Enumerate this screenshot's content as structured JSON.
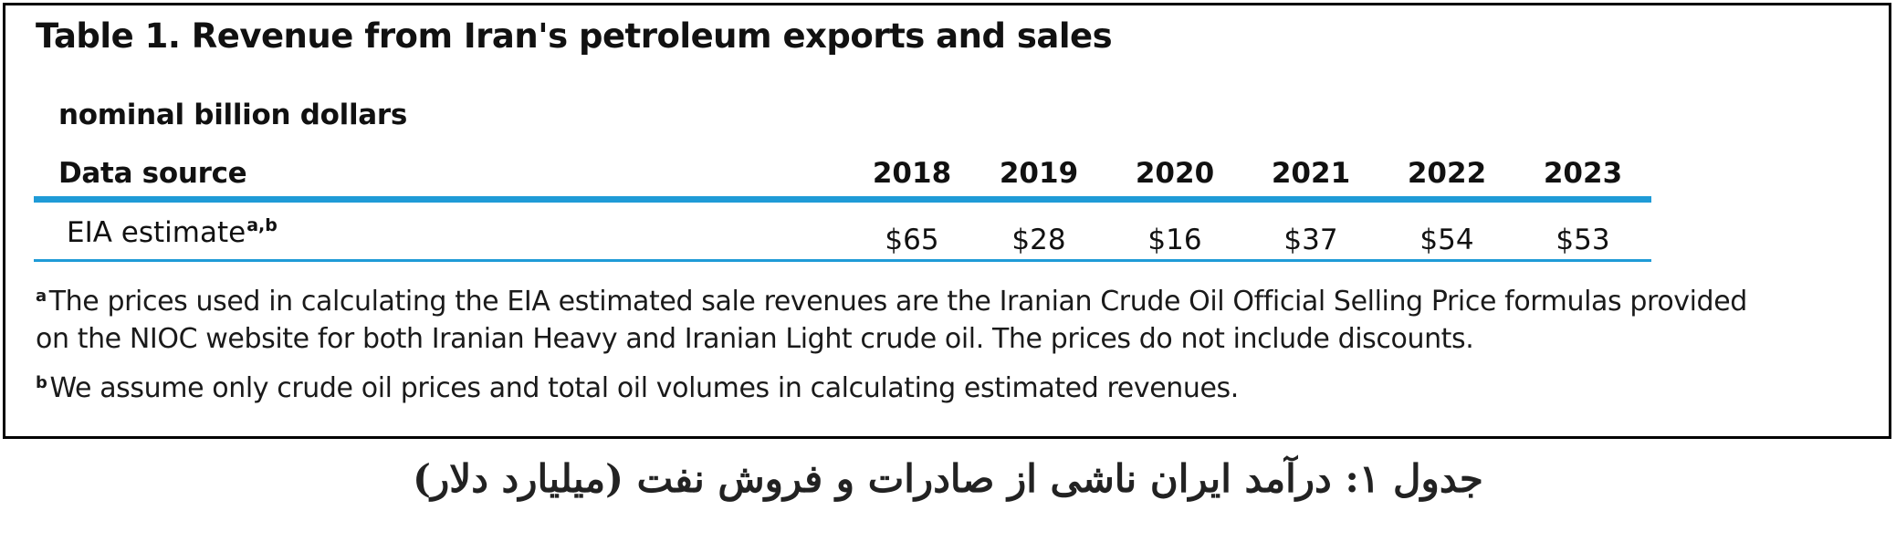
{
  "table": {
    "title": "Table 1. Revenue from Iran's petroleum exports and sales",
    "unit_label": "nominal billion dollars",
    "column_header": "Data source",
    "years": [
      "2018",
      "2019",
      "2020",
      "2021",
      "2022",
      "2023"
    ],
    "rows": [
      {
        "label": "EIA estimate",
        "label_marks": "a,b",
        "values": [
          "$65",
          "$28",
          "$16",
          "$37",
          "$54",
          "$53"
        ]
      }
    ],
    "accent_color": "#1f9bd7"
  },
  "footnotes": {
    "a": {
      "mark": "a",
      "line1": "The prices used in calculating the EIA estimated sale revenues are the Iranian Crude Oil Official Selling Price formulas provided",
      "line2": "on the NIOC website for both Iranian Heavy and Iranian Light crude oil. The prices do not include discounts."
    },
    "b": {
      "mark": "b",
      "text": "We assume only crude oil prices and total oil volumes in calculating estimated revenues."
    }
  },
  "caption": "جدول ۱: درآمد ایران ناشی از صادرات و فروش نفت (میلیارد دلار)"
}
